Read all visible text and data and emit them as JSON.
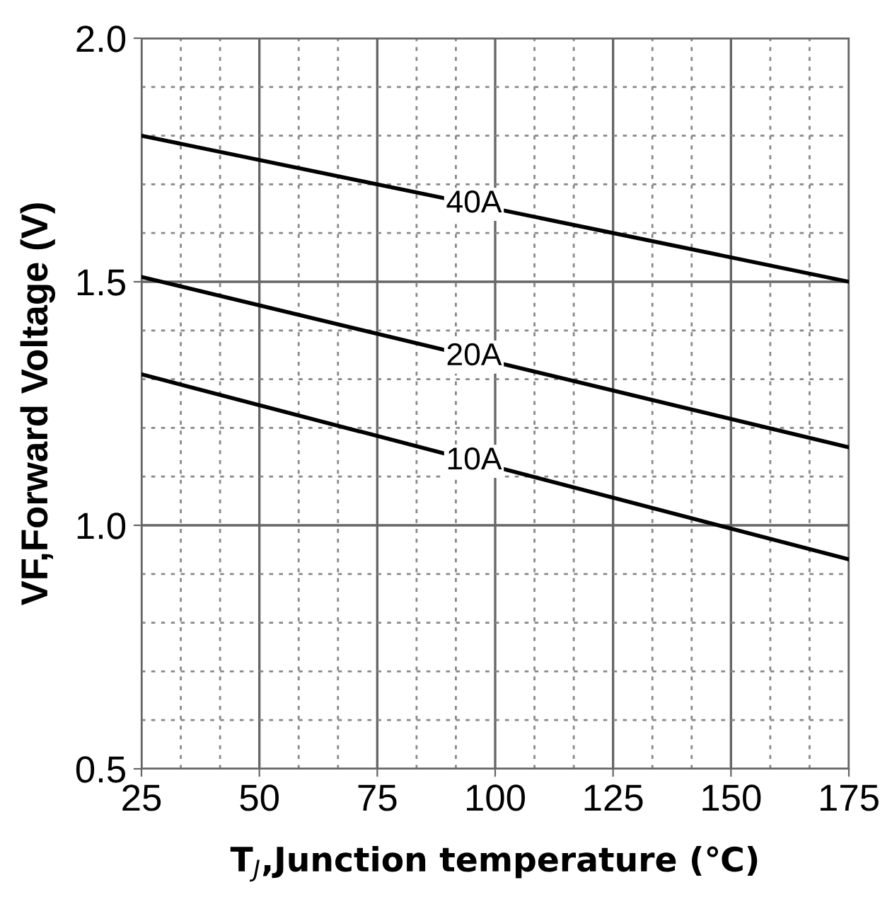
{
  "chart_data": {
    "type": "line",
    "xlabel": "T$_{J}$,Junction temperature (℃)",
    "ylabel": "VF,Forward Voltage (V)",
    "xlim": [
      25,
      175
    ],
    "xticks": [
      25,
      50,
      75,
      100,
      125,
      150,
      175
    ],
    "ylim": [
      0.5,
      2.0
    ],
    "yticks": [
      0.5,
      {
        "value": 1,
        "label": "1.0"
      },
      1.5,
      {
        "value": 2,
        "label": "2.0"
      }
    ],
    "grid": true,
    "x": [
      25,
      175
    ],
    "series": [
      {
        "name": "40A",
        "color": "#000000",
        "values": [
          1.8,
          1.5
        ]
      },
      {
        "name": "20A",
        "color": "#000000",
        "values": [
          1.51,
          1.16
        ]
      },
      {
        "name": "10A",
        "color": "#000000",
        "values": [
          1.31,
          0.93
        ]
      }
    ]
  }
}
